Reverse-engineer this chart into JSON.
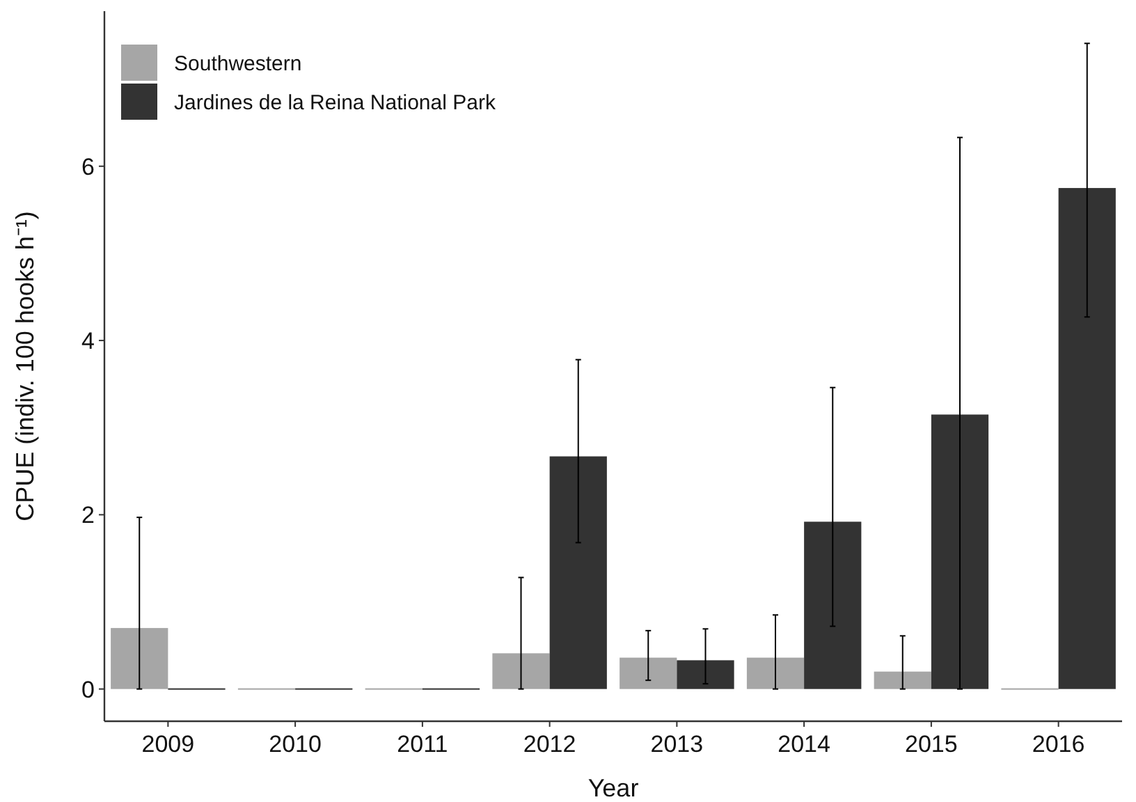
{
  "chart_data": {
    "type": "bar",
    "xlabel": "Year",
    "ylabel": "CPUE (indiv. 100 hooks h⁻¹)",
    "categories": [
      "2009",
      "2010",
      "2011",
      "2012",
      "2013",
      "2014",
      "2015",
      "2016"
    ],
    "series": [
      {
        "name": "Southwestern",
        "color": "#a6a6a6",
        "values": [
          0.7,
          0,
          0,
          0.41,
          0.36,
          0.36,
          0.2,
          0
        ],
        "errors": [
          [
            0,
            1.97
          ],
          null,
          null,
          [
            0,
            1.28
          ],
          [
            0.1,
            0.67
          ],
          [
            0,
            0.85
          ],
          [
            0,
            0.61
          ],
          null
        ]
      },
      {
        "name": "Jardines de la Reina National Park",
        "color": "#333333",
        "values": [
          0,
          0,
          0,
          2.67,
          0.33,
          1.92,
          3.15,
          5.75
        ],
        "errors": [
          null,
          null,
          null,
          [
            1.68,
            3.78
          ],
          [
            0.06,
            0.69
          ],
          [
            0.72,
            3.46
          ],
          [
            0,
            6.33
          ],
          [
            4.27,
            7.41
          ]
        ]
      }
    ],
    "ylim": [
      -0.37,
      7.78
    ],
    "yticks": [
      0,
      2,
      4,
      6
    ],
    "grid": false,
    "legend": "top left"
  }
}
